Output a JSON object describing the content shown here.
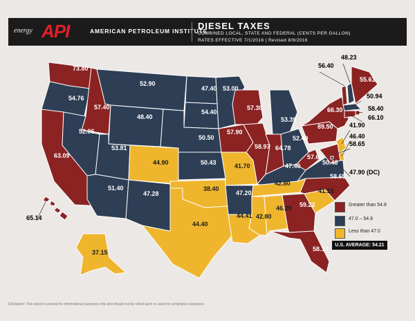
{
  "colors": {
    "high": "#8b2323",
    "mid": "#2d3e55",
    "low": "#efb52d",
    "border": "#ffffff",
    "background": "#ece8e5",
    "header": "#1b1b1b",
    "logo_accent": "#e0202a"
  },
  "header": {
    "logo_small": "energy",
    "logo_big": "API",
    "org_name": "AMERICAN PETROLEUM INSTITUTE",
    "title": "DIESEL TAXES",
    "subtitle": "COMBINED LOCAL, STATE AND FEDERAL (CENTS PER GALLON)",
    "effective": "RATES EFFECTIVE 7/1/2016  |  Revised 8/9/2016"
  },
  "legend": [
    {
      "label": "Greater than 54.8",
      "tier": "high"
    },
    {
      "label": "47.0 – 54.8",
      "tier": "mid"
    },
    {
      "label": "Less than 47.0",
      "tier": "low"
    }
  ],
  "us_average": "U.S. AVERAGE: 54.21",
  "disclaimer": "Disclaimer: This report is posted for informational purposes only and should not be relied upon or used for compliance purposes.",
  "states": [
    {
      "id": "WA",
      "value": "73.80",
      "tier": "high"
    },
    {
      "id": "OR",
      "value": "54.76",
      "tier": "mid"
    },
    {
      "id": "CA",
      "value": "63.09",
      "tier": "high"
    },
    {
      "id": "ID",
      "value": "57.40",
      "tier": "high"
    },
    {
      "id": "NV",
      "value": "52.96",
      "tier": "mid"
    },
    {
      "id": "MT",
      "value": "52.90",
      "tier": "mid"
    },
    {
      "id": "WY",
      "value": "48.40",
      "tier": "mid"
    },
    {
      "id": "UT",
      "value": "53.81",
      "tier": "mid"
    },
    {
      "id": "AZ",
      "value": "51.40",
      "tier": "mid"
    },
    {
      "id": "CO",
      "value": "44.90",
      "tier": "low"
    },
    {
      "id": "NM",
      "value": "47.28",
      "tier": "mid"
    },
    {
      "id": "ND",
      "value": "47.40",
      "tier": "mid"
    },
    {
      "id": "SD",
      "value": "54.40",
      "tier": "mid"
    },
    {
      "id": "NE",
      "value": "50.50",
      "tier": "mid"
    },
    {
      "id": "KS",
      "value": "50.43",
      "tier": "mid"
    },
    {
      "id": "OK",
      "value": "38.40",
      "tier": "low"
    },
    {
      "id": "TX",
      "value": "44.40",
      "tier": "low"
    },
    {
      "id": "MN",
      "value": "53.00",
      "tier": "mid"
    },
    {
      "id": "IA",
      "value": "57.90",
      "tier": "high"
    },
    {
      "id": "MO",
      "value": "41.70",
      "tier": "low"
    },
    {
      "id": "AR",
      "value": "47.20",
      "tier": "mid"
    },
    {
      "id": "LA",
      "value": "44.41",
      "tier": "low"
    },
    {
      "id": "WI",
      "value": "57.30",
      "tier": "high"
    },
    {
      "id": "IL",
      "value": "58.97",
      "tier": "high"
    },
    {
      "id": "MI",
      "value": "53.39",
      "tier": "mid"
    },
    {
      "id": "IN",
      "value": "64.78",
      "tier": "high"
    },
    {
      "id": "OH",
      "value": "52.40",
      "tier": "mid"
    },
    {
      "id": "KY",
      "value": "47.40",
      "tier": "mid"
    },
    {
      "id": "TN",
      "value": "42.80",
      "tier": "low"
    },
    {
      "id": "MS",
      "value": "42.80",
      "tier": "low"
    },
    {
      "id": "AL",
      "value": "46.29",
      "tier": "low"
    },
    {
      "id": "GA",
      "value": "59.22",
      "tier": "high"
    },
    {
      "id": "FL",
      "value": "58.17",
      "tier": "high"
    },
    {
      "id": "SC",
      "value": "41.15",
      "tier": "low"
    },
    {
      "id": "NC",
      "value": "58.65",
      "tier": "high"
    },
    {
      "id": "VA",
      "value": "50.48",
      "tier": "mid"
    },
    {
      "id": "WV",
      "value": "57.60",
      "tier": "high"
    },
    {
      "id": "PA",
      "value": "89.50",
      "tier": "high"
    },
    {
      "id": "NY",
      "value": "66.30",
      "tier": "high"
    },
    {
      "id": "VT",
      "value": "56.40",
      "tier": "high"
    },
    {
      "id": "NH",
      "value": "48.23",
      "tier": "mid"
    },
    {
      "id": "ME",
      "value": "55.61",
      "tier": "high"
    },
    {
      "id": "MA",
      "value": "50.94",
      "tier": "mid"
    },
    {
      "id": "RI",
      "value": "58.40",
      "tier": "high"
    },
    {
      "id": "CT",
      "value": "66.10",
      "tier": "high"
    },
    {
      "id": "NJ",
      "value": "41.90",
      "tier": "low"
    },
    {
      "id": "DE",
      "value": "46.40",
      "tier": "low"
    },
    {
      "id": "MD",
      "value": "58.65",
      "tier": "high"
    },
    {
      "id": "DC",
      "value": "47.90 (DC)",
      "tier": "mid"
    },
    {
      "id": "AK",
      "value": "37.15",
      "tier": "low"
    },
    {
      "id": "HI",
      "value": "65.14",
      "tier": "high"
    }
  ]
}
